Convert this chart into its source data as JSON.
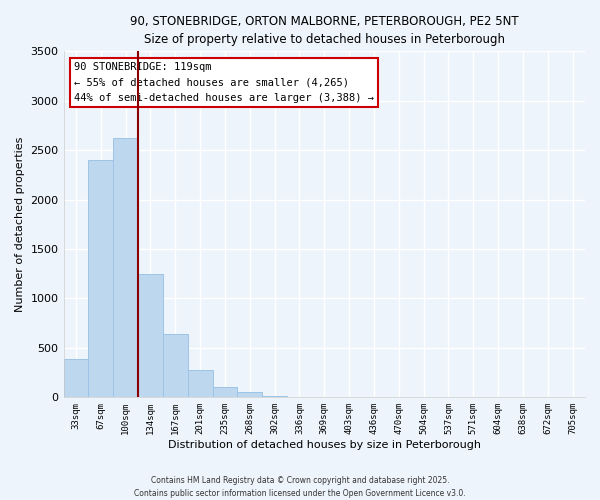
{
  "title_line1": "90, STONEBRIDGE, ORTON MALBORNE, PETERBOROUGH, PE2 5NT",
  "title_line2": "Size of property relative to detached houses in Peterborough",
  "categories": [
    "33sqm",
    "67sqm",
    "100sqm",
    "134sqm",
    "167sqm",
    "201sqm",
    "235sqm",
    "268sqm",
    "302sqm",
    "336sqm",
    "369sqm",
    "403sqm",
    "436sqm",
    "470sqm",
    "504sqm",
    "537sqm",
    "571sqm",
    "604sqm",
    "638sqm",
    "672sqm",
    "705sqm"
  ],
  "values": [
    390,
    2400,
    2620,
    1250,
    640,
    275,
    105,
    50,
    15,
    5,
    2,
    0,
    0,
    0,
    0,
    0,
    0,
    0,
    0,
    0,
    0
  ],
  "bar_color": "#bdd7ee",
  "bar_edge_color": "#9dc3e6",
  "vline_color": "#8b0000",
  "annotation_title": "90 STONEBRIDGE: 119sqm",
  "annotation_line2": "← 55% of detached houses are smaller (4,265)",
  "annotation_line3": "44% of semi-detached houses are larger (3,388) →",
  "annotation_box_color": "#ffffff",
  "annotation_box_edge": "#cc0000",
  "xlabel": "Distribution of detached houses by size in Peterborough",
  "ylabel": "Number of detached properties",
  "ylim": [
    0,
    3500
  ],
  "yticks": [
    0,
    500,
    1000,
    1500,
    2000,
    2500,
    3000,
    3500
  ],
  "footer_line1": "Contains HM Land Registry data © Crown copyright and database right 2025.",
  "footer_line2": "Contains public sector information licensed under the Open Government Licence v3.0.",
  "background_color": "#eef4fb",
  "grid_color": "#ffffff"
}
